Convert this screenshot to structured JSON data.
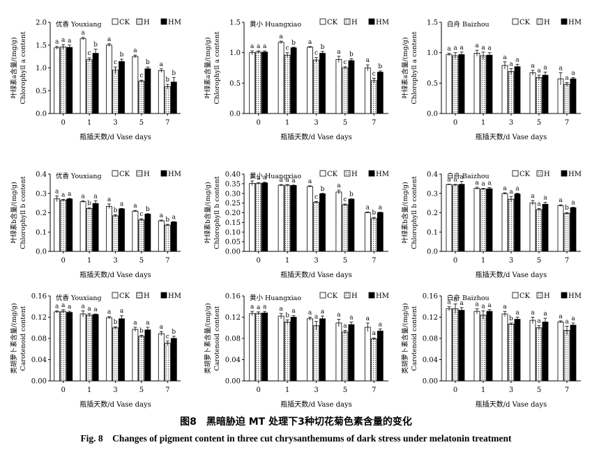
{
  "caption": {
    "cn": "图8　黑暗胁迫 MT 处理下3种切花菊色素含量的变化",
    "en": "Fig. 8　Changes of pigment content in three cut chrysanthemums of dark stress under melatonin treatment"
  },
  "colors": {
    "CK": "#ffffff",
    "H": "#dcdcdc",
    "HM": "#000000"
  },
  "chart_data": [
    {
      "type": "bar",
      "cultivar": "优香 Youxiang",
      "ylabel": [
        "叶绿素a含量/(mg/g)",
        "Chlorophyll a content"
      ],
      "xlabel": "瓶插天数/d  Vase days",
      "categories": [
        "0",
        "1",
        "3",
        "5",
        "7"
      ],
      "ylim": [
        0,
        2.0
      ],
      "yticks": [
        "0.0",
        "0.5",
        "1.0",
        "1.5",
        "2.0"
      ],
      "series": [
        {
          "name": "CK",
          "values": [
            1.44,
            1.64,
            1.5,
            1.25,
            0.94
          ],
          "err": [
            0.03,
            0.03,
            0.03,
            0.03,
            0.04
          ],
          "labels": [
            "a",
            "a",
            "a",
            "a",
            "a"
          ]
        },
        {
          "name": "H",
          "values": [
            1.46,
            1.18,
            0.95,
            0.71,
            0.59
          ],
          "err": [
            0.05,
            0.04,
            0.07,
            0.02,
            0.05
          ],
          "labels": [
            "a",
            "c",
            "c",
            "c",
            "b"
          ]
        },
        {
          "name": "HM",
          "values": [
            1.45,
            1.32,
            1.14,
            0.98,
            0.69
          ],
          "err": [
            0.05,
            0.09,
            0.05,
            0.04,
            0.1
          ],
          "labels": [
            "a",
            "b",
            "b",
            "b",
            "b"
          ]
        }
      ],
      "legend": [
        "CK",
        "H",
        "HM"
      ]
    },
    {
      "type": "bar",
      "cultivar": "黄小 Huangxiao",
      "ylabel": [
        "叶绿素a含量/(mg/g)",
        "Chlorophyll a content"
      ],
      "xlabel": "瓶插天数/d  Vase days",
      "categories": [
        "0",
        "1",
        "3",
        "5",
        "7"
      ],
      "ylim": [
        0,
        1.5
      ],
      "yticks": [
        "0.0",
        "0.5",
        "1.0",
        "1.5"
      ],
      "series": [
        {
          "name": "CK",
          "values": [
            1.0,
            1.17,
            1.09,
            0.89,
            0.75
          ],
          "err": [
            0.03,
            0.02,
            0.01,
            0.05,
            0.05
          ],
          "labels": [
            "a",
            "a",
            "a",
            "a",
            "a"
          ]
        },
        {
          "name": "H",
          "values": [
            1.01,
            0.96,
            0.88,
            0.75,
            0.54
          ],
          "err": [
            0.02,
            0.04,
            0.04,
            0.02,
            0.04
          ],
          "labels": [
            "a",
            "c",
            "c",
            "c",
            "c"
          ]
        },
        {
          "name": "HM",
          "values": [
            1.01,
            1.08,
            0.99,
            0.87,
            0.68
          ],
          "err": [
            0.02,
            0.01,
            0.03,
            0.03,
            0.02
          ],
          "labels": [
            "a",
            "b",
            "b",
            "b",
            "b"
          ]
        }
      ],
      "legend": [
        "CK",
        "H",
        "HM"
      ]
    },
    {
      "type": "bar",
      "cultivar": "白舟 Baizhou",
      "ylabel": [
        "叶绿素a含量/(mg/g)",
        "Chlorophyll a content"
      ],
      "xlabel": "瓶插天数/d  Vase days",
      "categories": [
        "0",
        "1",
        "3",
        "5",
        "7"
      ],
      "ylim": [
        0,
        1.5
      ],
      "yticks": [
        "0.0",
        "0.5",
        "1.0",
        "1.5"
      ],
      "series": [
        {
          "name": "CK",
          "values": [
            0.97,
            0.99,
            0.79,
            0.67,
            0.57
          ],
          "err": [
            0.02,
            0.05,
            0.06,
            0.04,
            0.1
          ],
          "labels": [
            "a",
            "a",
            "a",
            "a",
            "a"
          ]
        },
        {
          "name": "H",
          "values": [
            0.95,
            0.95,
            0.69,
            0.59,
            0.48
          ],
          "err": [
            0.05,
            0.06,
            0.05,
            0.04,
            0.03
          ],
          "labels": [
            "a",
            "a",
            "a",
            "a",
            "a"
          ]
        },
        {
          "name": "HM",
          "values": [
            0.97,
            0.96,
            0.77,
            0.63,
            0.57
          ],
          "err": [
            0.04,
            0.04,
            0.04,
            0.05,
            0.02
          ],
          "labels": [
            "a",
            "a",
            "a",
            "a",
            "a"
          ]
        }
      ],
      "legend": [
        "CK",
        "H",
        "HM"
      ]
    },
    {
      "type": "bar",
      "cultivar": "优香 Youxiang",
      "ylabel": [
        "叶绿素b含量/(mg/g)",
        "Chlorophyll b content"
      ],
      "xlabel": "瓶插天数/d  Vase days",
      "categories": [
        "0",
        "1",
        "3",
        "5",
        "7"
      ],
      "ylim": [
        0,
        0.4
      ],
      "yticks": [
        "0.0",
        "0.1",
        "0.2",
        "0.3",
        "0.4"
      ],
      "series": [
        {
          "name": "CK",
          "values": [
            0.272,
            0.257,
            0.233,
            0.208,
            0.158
          ],
          "err": [
            0.015,
            0.004,
            0.012,
            0.004,
            0.004
          ],
          "labels": [
            "a",
            "a",
            "a",
            "a",
            "a"
          ]
        },
        {
          "name": "H",
          "values": [
            0.265,
            0.222,
            0.184,
            0.163,
            0.136
          ],
          "err": [
            0.004,
            0.003,
            0.006,
            0.006,
            0.004
          ],
          "labels": [
            "a",
            "b",
            "b",
            "c",
            "b"
          ]
        },
        {
          "name": "HM",
          "values": [
            0.271,
            0.248,
            0.22,
            0.193,
            0.152
          ],
          "err": [
            0.003,
            0.014,
            0.002,
            0.002,
            0.002
          ],
          "labels": [
            "a",
            "a",
            "a",
            "b",
            "a"
          ]
        }
      ],
      "legend": [
        "CK",
        "H",
        "HM"
      ]
    },
    {
      "type": "bar",
      "cultivar": "黄小 Huangxiao",
      "ylabel": [
        "叶绿素b含量/(mg/g)",
        "Chlorophyll b content"
      ],
      "xlabel": "瓶插天数/d  Vase days",
      "categories": [
        "0",
        "1",
        "3",
        "5",
        "7"
      ],
      "ylim": [
        0,
        0.4
      ],
      "yticks": [
        "0.00",
        "0.05",
        "0.10",
        "0.15",
        "0.20",
        "0.25",
        "0.30",
        "0.35",
        "0.40"
      ],
      "series": [
        {
          "name": "CK",
          "values": [
            0.352,
            0.342,
            0.336,
            0.307,
            0.201
          ],
          "err": [
            0.012,
            0.004,
            0.003,
            0.01,
            0.003
          ],
          "labels": [
            "a",
            "a",
            "a",
            "a",
            "a"
          ]
        },
        {
          "name": "H",
          "values": [
            0.352,
            0.342,
            0.254,
            0.241,
            0.17
          ],
          "err": [
            0.004,
            0.004,
            0.004,
            0.004,
            0.006
          ],
          "labels": [
            "a",
            "a",
            "c",
            "c",
            "b"
          ]
        },
        {
          "name": "HM",
          "values": [
            0.354,
            0.341,
            0.298,
            0.27,
            0.201
          ],
          "err": [
            0.004,
            0.002,
            0.002,
            0.002,
            0.002
          ],
          "labels": [
            "a",
            "a",
            "b",
            "b",
            "a"
          ]
        }
      ],
      "legend": [
        "CK",
        "H",
        "HM"
      ]
    },
    {
      "type": "bar",
      "cultivar": "白舟 Baizhou",
      "ylabel": [
        "叶绿素b含量/(mg/g)",
        "Chlorophyll b content"
      ],
      "xlabel": "瓶插天数/d  Vase days",
      "categories": [
        "0",
        "1",
        "3",
        "5",
        "7"
      ],
      "ylim": [
        0,
        0.4
      ],
      "yticks": [
        "0.0",
        "0.1",
        "0.2",
        "0.3",
        "0.4"
      ],
      "series": [
        {
          "name": "CK",
          "values": [
            0.346,
            0.326,
            0.299,
            0.251,
            0.237
          ],
          "err": [
            0.002,
            0.006,
            0.004,
            0.012,
            0.004
          ],
          "labels": [
            "a",
            "a",
            "a",
            "a",
            "a"
          ]
        },
        {
          "name": "H",
          "values": [
            0.343,
            0.322,
            0.27,
            0.216,
            0.197
          ],
          "err": [
            0.004,
            0.004,
            0.014,
            0.006,
            0.004
          ],
          "labels": [
            "a",
            "a",
            "a",
            "a",
            "b"
          ]
        },
        {
          "name": "HM",
          "values": [
            0.347,
            0.324,
            0.297,
            0.244,
            0.226
          ],
          "err": [
            0.015,
            0.006,
            0.004,
            0.01,
            0.002
          ],
          "labels": [
            "a",
            "a",
            "a",
            "a",
            "a"
          ]
        }
      ],
      "legend": [
        "CK",
        "H",
        "HM"
      ]
    },
    {
      "type": "bar",
      "cultivar": "优香 Youxiang",
      "ylabel": [
        "类胡萝卜素含量/(mg/g)",
        "Carotenoid content"
      ],
      "xlabel": "瓶插天数/d  Vase days",
      "categories": [
        "0",
        "1",
        "3",
        "5",
        "7"
      ],
      "ylim": [
        0,
        0.16
      ],
      "yticks": [
        "0.00",
        "0.04",
        "0.08",
        "0.12",
        "0.16"
      ],
      "series": [
        {
          "name": "CK",
          "values": [
            0.13,
            0.126,
            0.119,
            0.097,
            0.089
          ],
          "err": [
            0.002,
            0.006,
            0.002,
            0.004,
            0.004
          ],
          "labels": [
            "a",
            "a",
            "a",
            "a",
            "a"
          ]
        },
        {
          "name": "H",
          "values": [
            0.131,
            0.124,
            0.1,
            0.084,
            0.071
          ],
          "err": [
            0.003,
            0.003,
            0.002,
            0.002,
            0.004
          ],
          "labels": [
            "a",
            "a",
            "b",
            "b",
            "c"
          ]
        },
        {
          "name": "HM",
          "values": [
            0.129,
            0.125,
            0.117,
            0.096,
            0.08
          ],
          "err": [
            0.002,
            0.001,
            0.006,
            0.005,
            0.004
          ],
          "labels": [
            "a",
            "a",
            "a",
            "a",
            "b"
          ]
        }
      ],
      "legend": [
        "CK",
        "H",
        "HM"
      ]
    },
    {
      "type": "bar",
      "cultivar": "黄小 Huangxiao",
      "ylabel": [
        "类胡萝卜素含量/(mg/g)",
        "Carotenoid content"
      ],
      "xlabel": "瓶插天数/d  Vase days",
      "categories": [
        "0",
        "1",
        "3",
        "5",
        "7"
      ],
      "ylim": [
        0,
        0.16
      ],
      "yticks": [
        "0.00",
        "0.04",
        "0.08",
        "0.12",
        "0.16"
      ],
      "series": [
        {
          "name": "CK",
          "values": [
            0.127,
            0.122,
            0.117,
            0.109,
            0.101
          ],
          "err": [
            0.004,
            0.005,
            0.003,
            0.007,
            0.008
          ],
          "labels": [
            "a",
            "a",
            "a",
            "a",
            "a"
          ]
        },
        {
          "name": "H",
          "values": [
            0.127,
            0.111,
            0.104,
            0.092,
            0.079
          ],
          "err": [
            0.003,
            0.004,
            0.008,
            0.003,
            0.002
          ],
          "labels": [
            "a",
            "b",
            "a",
            "a",
            "a"
          ]
        },
        {
          "name": "HM",
          "values": [
            0.128,
            0.12,
            0.117,
            0.106,
            0.094
          ],
          "err": [
            0.003,
            0.003,
            0.005,
            0.005,
            0.004
          ],
          "labels": [
            "a",
            "a",
            "a",
            "a",
            "a"
          ]
        }
      ],
      "legend": [
        "CK",
        "H",
        "HM"
      ]
    },
    {
      "type": "bar",
      "cultivar": "白舟 Baizhou",
      "ylabel": [
        "类胡萝卜素含量/(mg/g)",
        "Carotenoid content"
      ],
      "xlabel": "瓶插天数/d  Vase days",
      "categories": [
        "0",
        "1",
        "3",
        "5",
        "7"
      ],
      "ylim": [
        0,
        0.16
      ],
      "yticks": [
        "0.00",
        "0.04",
        "0.08",
        "0.12",
        "0.16"
      ],
      "series": [
        {
          "name": "CK",
          "values": [
            0.136,
            0.131,
            0.126,
            0.114,
            0.111
          ],
          "err": [
            0.004,
            0.005,
            0.005,
            0.006,
            0.002
          ],
          "labels": [
            "a",
            "a",
            "a",
            "a",
            "a"
          ]
        },
        {
          "name": "H",
          "values": [
            0.136,
            0.124,
            0.107,
            0.1,
            0.095
          ],
          "err": [
            0.009,
            0.008,
            0.002,
            0.004,
            0.008
          ],
          "labels": [
            "a",
            "a",
            "b",
            "a",
            "a"
          ]
        },
        {
          "name": "HM",
          "values": [
            0.133,
            0.131,
            0.116,
            0.111,
            0.105
          ],
          "err": [
            0.005,
            0.003,
            0.004,
            0.007,
            0.004
          ],
          "labels": [
            "a",
            "a",
            "a",
            "a",
            "a"
          ]
        }
      ],
      "legend": [
        "CK",
        "H",
        "HM"
      ]
    }
  ]
}
